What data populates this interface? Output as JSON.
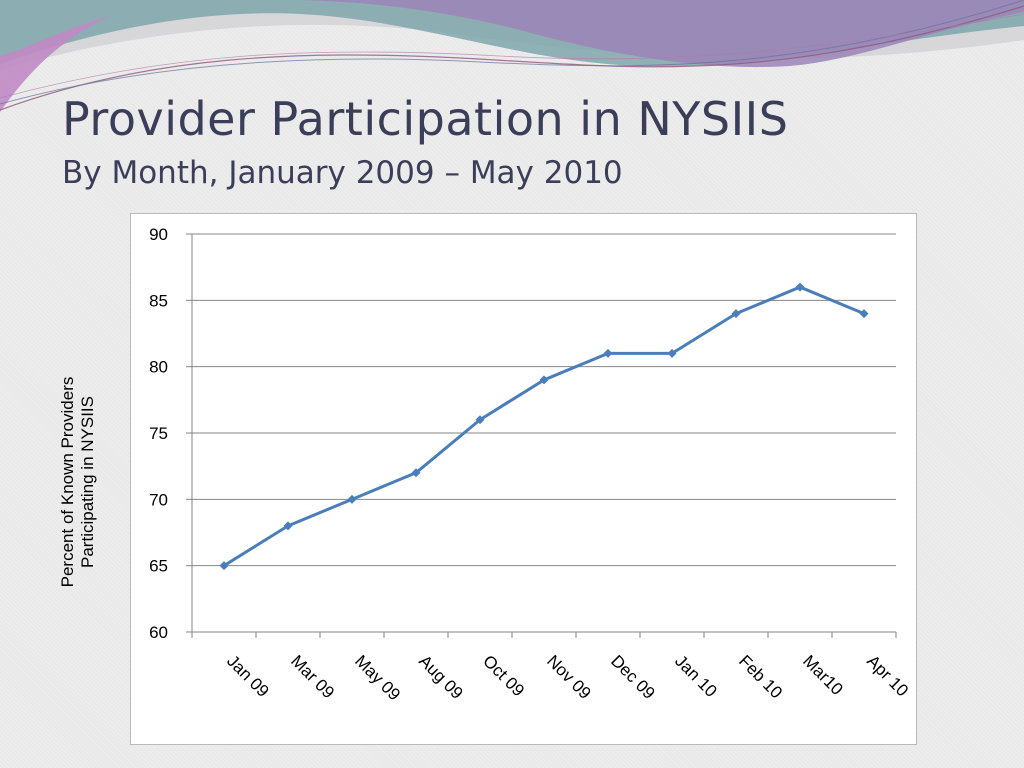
{
  "slide": {
    "title": "Provider Participation in NYSIIS",
    "subtitle": "By Month, January 2009 – May 2010"
  },
  "colors": {
    "series_line": "#4a7ebb",
    "gridline": "#868686",
    "title_text": "#3b3e58",
    "wave_purple": "#9b84b8",
    "wave_teal": "#7fa6ab",
    "wave_pink": "#c08ac4"
  },
  "chart_data": {
    "type": "line",
    "title": "",
    "ylabel": "Percent of Known Providers Participating in NYSIIS",
    "ylabel_lines": [
      "Percent of Known Providers",
      "Participating in NYSIIS"
    ],
    "xlabel": "",
    "ylim": [
      60,
      90
    ],
    "yticks": [
      90,
      85,
      80,
      75,
      70,
      65,
      60
    ],
    "grid": true,
    "legend": "none",
    "categories": [
      "Jan 09",
      "Mar 09",
      "May 09",
      "Aug 09",
      "Oct 09",
      "Nov 09",
      "Dec 09",
      "Jan 10",
      "Feb 10",
      "Mar10",
      "Apr 10"
    ],
    "series": [
      {
        "values": [
          65,
          68,
          70,
          72,
          76,
          79,
          81,
          81,
          84,
          86,
          84
        ]
      }
    ]
  }
}
